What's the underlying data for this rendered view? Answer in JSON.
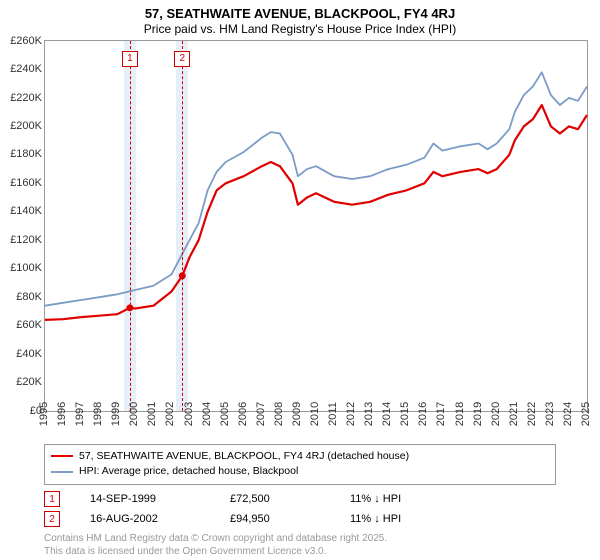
{
  "title_line1": "57, SEATHWAITE AVENUE, BLACKPOOL, FY4 4RJ",
  "title_line2": "Price paid vs. HM Land Registry's House Price Index (HPI)",
  "chart": {
    "type": "line",
    "ylim": [
      0,
      260000
    ],
    "ytick_step": 20000,
    "y_prefix": "£",
    "xlim": [
      1995,
      2025
    ],
    "xtick_step": 1,
    "background_color": "#ffffff",
    "axis_color": "#999999",
    "series": [
      {
        "name": "57, SEATHWAITE AVENUE, BLACKPOOL, FY4 4RJ (detached house)",
        "color": "#e00000",
        "width": 2.2,
        "data": [
          [
            1995,
            64000
          ],
          [
            1996,
            64500
          ],
          [
            1997,
            66000
          ],
          [
            1998,
            67000
          ],
          [
            1999,
            68000
          ],
          [
            1999.7,
            72500
          ],
          [
            2000,
            72000
          ],
          [
            2001,
            74000
          ],
          [
            2002,
            84000
          ],
          [
            2002.6,
            95000
          ],
          [
            2003,
            108000
          ],
          [
            2003.5,
            120000
          ],
          [
            2004,
            140000
          ],
          [
            2004.5,
            155000
          ],
          [
            2005,
            160000
          ],
          [
            2006,
            165000
          ],
          [
            2007,
            172000
          ],
          [
            2007.5,
            175000
          ],
          [
            2008,
            172000
          ],
          [
            2008.7,
            160000
          ],
          [
            2009,
            145000
          ],
          [
            2009.5,
            150000
          ],
          [
            2010,
            153000
          ],
          [
            2011,
            147000
          ],
          [
            2012,
            145000
          ],
          [
            2013,
            147000
          ],
          [
            2014,
            152000
          ],
          [
            2015,
            155000
          ],
          [
            2016,
            160000
          ],
          [
            2016.5,
            168000
          ],
          [
            2017,
            165000
          ],
          [
            2018,
            168000
          ],
          [
            2019,
            170000
          ],
          [
            2019.5,
            167000
          ],
          [
            2020,
            170000
          ],
          [
            2020.7,
            180000
          ],
          [
            2021,
            190000
          ],
          [
            2021.5,
            200000
          ],
          [
            2022,
            205000
          ],
          [
            2022.5,
            215000
          ],
          [
            2023,
            200000
          ],
          [
            2023.5,
            195000
          ],
          [
            2024,
            200000
          ],
          [
            2024.5,
            198000
          ],
          [
            2025,
            208000
          ]
        ]
      },
      {
        "name": "HPI: Average price, detached house, Blackpool",
        "color": "#7a9cc6",
        "width": 1.8,
        "data": [
          [
            1995,
            74000
          ],
          [
            1996,
            76000
          ],
          [
            1997,
            78000
          ],
          [
            1998,
            80000
          ],
          [
            1999,
            82000
          ],
          [
            2000,
            85000
          ],
          [
            2001,
            88000
          ],
          [
            2002,
            96000
          ],
          [
            2003,
            120000
          ],
          [
            2003.5,
            132000
          ],
          [
            2004,
            155000
          ],
          [
            2004.5,
            168000
          ],
          [
            2005,
            175000
          ],
          [
            2006,
            182000
          ],
          [
            2007,
            192000
          ],
          [
            2007.5,
            196000
          ],
          [
            2008,
            195000
          ],
          [
            2008.7,
            180000
          ],
          [
            2009,
            165000
          ],
          [
            2009.5,
            170000
          ],
          [
            2010,
            172000
          ],
          [
            2011,
            165000
          ],
          [
            2012,
            163000
          ],
          [
            2013,
            165000
          ],
          [
            2014,
            170000
          ],
          [
            2015,
            173000
          ],
          [
            2016,
            178000
          ],
          [
            2016.5,
            188000
          ],
          [
            2017,
            183000
          ],
          [
            2018,
            186000
          ],
          [
            2019,
            188000
          ],
          [
            2019.5,
            184000
          ],
          [
            2020,
            188000
          ],
          [
            2020.7,
            198000
          ],
          [
            2021,
            210000
          ],
          [
            2021.5,
            222000
          ],
          [
            2022,
            228000
          ],
          [
            2022.5,
            238000
          ],
          [
            2023,
            222000
          ],
          [
            2023.5,
            215000
          ],
          [
            2024,
            220000
          ],
          [
            2024.5,
            218000
          ],
          [
            2025,
            228000
          ]
        ]
      }
    ],
    "events": [
      {
        "n": 1,
        "x": 1999.7,
        "band_color": "#e6eef8",
        "line_color": "#d00000"
      },
      {
        "n": 2,
        "x": 2002.6,
        "band_color": "#e6eef8",
        "line_color": "#d00000"
      }
    ],
    "markers": [
      {
        "x": 1999.7,
        "y": 72500,
        "color": "#e00000"
      },
      {
        "x": 2002.6,
        "y": 95000,
        "color": "#e00000"
      }
    ]
  },
  "legend": {
    "items": [
      {
        "color": "#e00000",
        "label": "57, SEATHWAITE AVENUE, BLACKPOOL, FY4 4RJ (detached house)"
      },
      {
        "color": "#7a9cc6",
        "label": "HPI: Average price, detached house, Blackpool"
      }
    ]
  },
  "event_rows": [
    {
      "n": "1",
      "date": "14-SEP-1999",
      "price": "£72,500",
      "delta": "11% ↓ HPI",
      "box_color": "#d00000"
    },
    {
      "n": "2",
      "date": "16-AUG-2002",
      "price": "£94,950",
      "delta": "11% ↓ HPI",
      "box_color": "#d00000"
    }
  ],
  "footer_line1": "Contains HM Land Registry data © Crown copyright and database right 2025.",
  "footer_line2": "This data is licensed under the Open Government Licence v3.0."
}
